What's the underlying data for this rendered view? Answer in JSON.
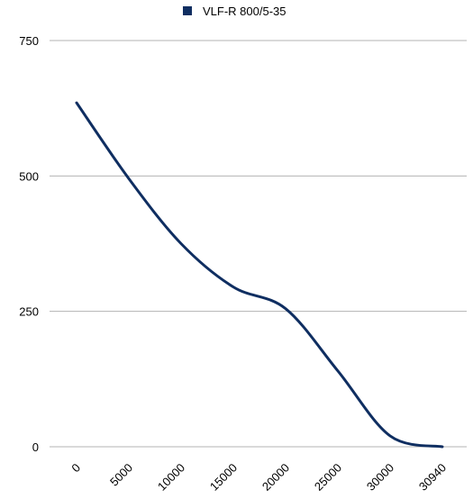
{
  "chart_data": {
    "type": "line",
    "title": "",
    "xlabel": "",
    "ylabel": "",
    "x_tick_labels": [
      "0",
      "5000",
      "10000",
      "15000",
      "20000",
      "25000",
      "30000",
      "30940"
    ],
    "y_tick_labels": [
      "0",
      "250",
      "500",
      "750"
    ],
    "ylim": [
      0,
      750
    ],
    "grid": true,
    "legend_position": "top-center",
    "series": [
      {
        "name": "VLF-R 800/5-35",
        "color": "#0f2e61",
        "x": [
          "0",
          "5000",
          "10000",
          "15000",
          "20000",
          "25000",
          "30000",
          "30940"
        ],
        "values": [
          635,
          495,
          375,
          295,
          255,
          140,
          20,
          0
        ]
      }
    ]
  }
}
